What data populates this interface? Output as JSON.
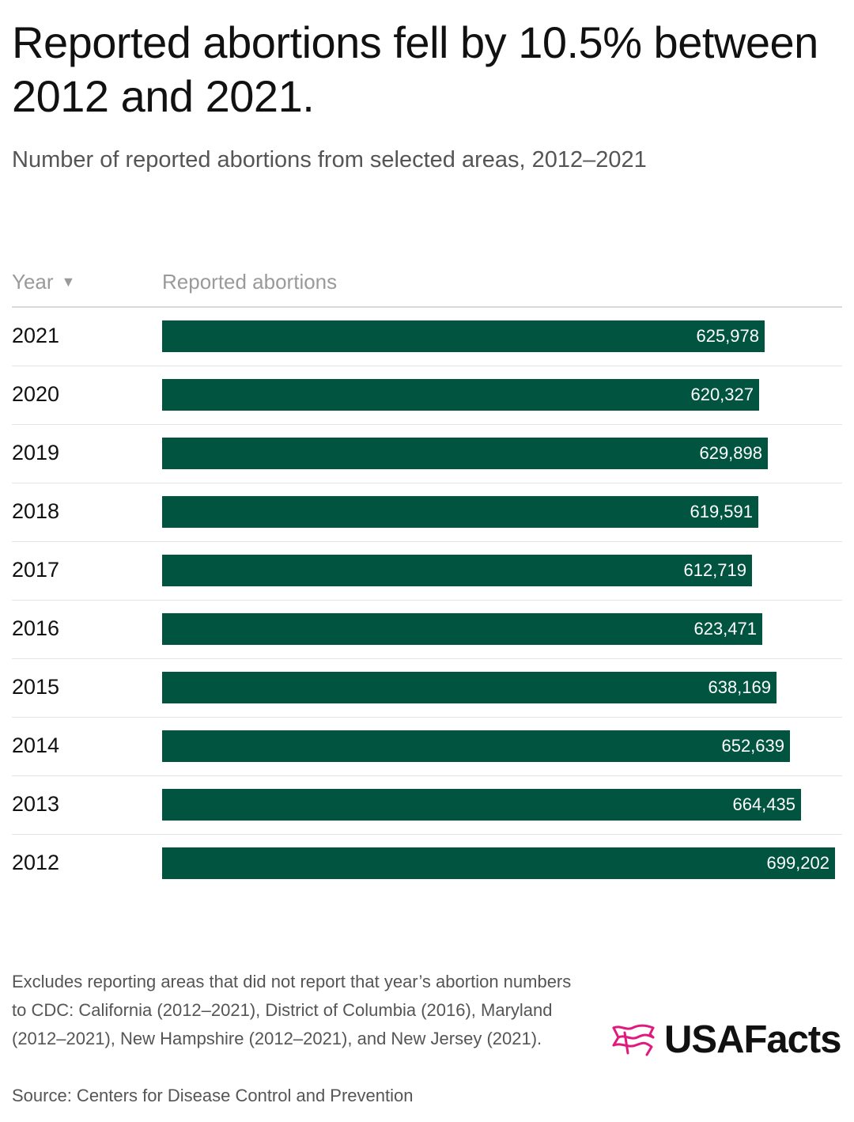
{
  "title": "Reported abortions fell by 10.5% between 2012 and 2021.",
  "subtitle": "Number of reported abortions from selected areas, 2012–2021",
  "columns": {
    "year": "Year",
    "value": "Reported abortions"
  },
  "sort_icon": "sort-descending-icon",
  "colors": {
    "bar": "#005440",
    "logo_accent": "#e0197d"
  },
  "chart_data": {
    "type": "bar",
    "orientation": "horizontal",
    "categories": [
      "2021",
      "2020",
      "2019",
      "2018",
      "2017",
      "2016",
      "2015",
      "2014",
      "2013",
      "2012"
    ],
    "values": [
      625978,
      620327,
      629898,
      619591,
      612719,
      623471,
      638169,
      652639,
      664435,
      699202
    ],
    "value_labels": [
      "625,978",
      "620,327",
      "629,898",
      "619,591",
      "612,719",
      "623,471",
      "638,169",
      "652,639",
      "664,435",
      "699,202"
    ],
    "xlim": [
      0,
      715000
    ],
    "grid": false
  },
  "notes": "Excludes reporting areas that did not report that year’s abortion numbers to CDC: California (2012–2021), District of Columbia (2016), Maryland (2012–2021), New Hampshire (2012–2021), and New Jersey (2021).",
  "source": "Source: Centers for Disease Control and Prevention",
  "logo": {
    "text": "USAFacts",
    "icon": "usafacts-flag-icon"
  }
}
